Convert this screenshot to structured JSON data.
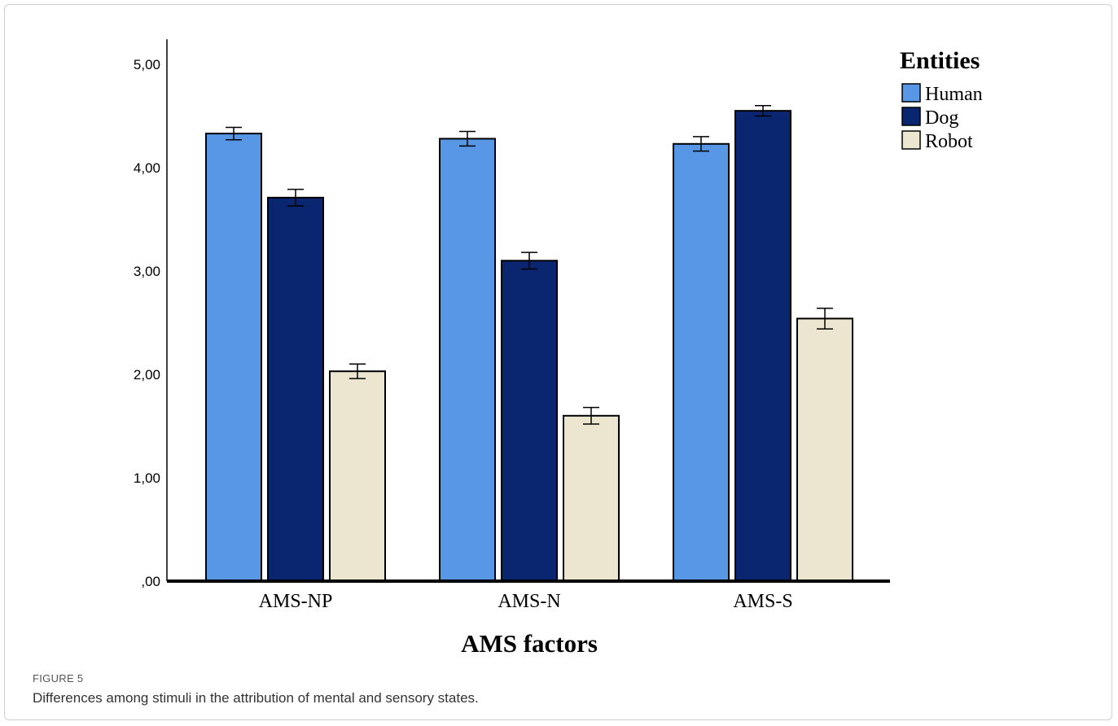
{
  "chart_data": {
    "type": "bar",
    "categories": [
      "AMS-NP",
      "AMS-N",
      "AMS-S"
    ],
    "series": [
      {
        "name": "Human",
        "color": "#5797e6",
        "values": [
          4.33,
          4.28,
          4.23
        ],
        "errors": [
          0.06,
          0.07,
          0.07
        ]
      },
      {
        "name": "Dog",
        "color": "#0b2670",
        "values": [
          3.71,
          3.1,
          4.55
        ],
        "errors": [
          0.08,
          0.08,
          0.05
        ]
      },
      {
        "name": "Robot",
        "color": "#ece6d1",
        "values": [
          2.03,
          1.6,
          2.54
        ],
        "errors": [
          0.07,
          0.08,
          0.1
        ]
      }
    ],
    "xlabel": "AMS factors",
    "ylabel": "",
    "ylim": [
      0,
      5.25
    ],
    "yticks": [
      {
        "value": 0,
        "label": ",00"
      },
      {
        "value": 1,
        "label": "1,00"
      },
      {
        "value": 2,
        "label": "2,00"
      },
      {
        "value": 3,
        "label": "3,00"
      },
      {
        "value": 4,
        "label": "4,00"
      },
      {
        "value": 5,
        "label": "5,00"
      }
    ],
    "legend": {
      "title": "Entities",
      "placement": "top-right"
    },
    "grid": false,
    "error_bars": true
  },
  "figure": {
    "label": "FIGURE 5",
    "caption": "Differences among stimuli in the attribution of mental and sensory states."
  }
}
